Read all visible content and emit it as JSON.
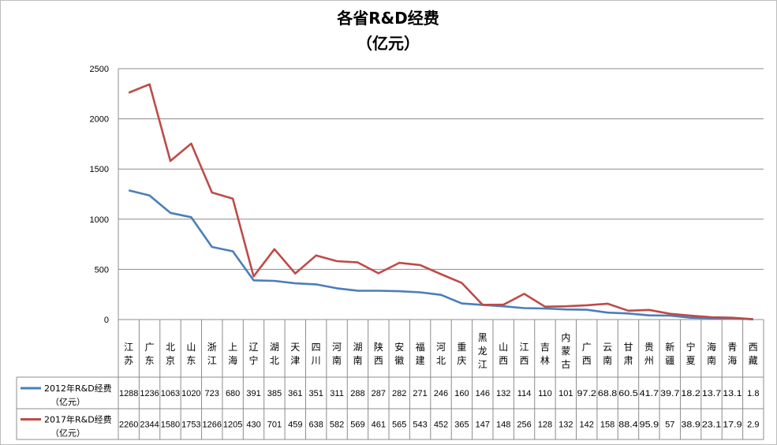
{
  "chart_data": {
    "type": "line",
    "title": "各省R&D经费",
    "subtitle": "（亿元）",
    "ylim": [
      0,
      2500
    ],
    "yticks": [
      "0",
      "500",
      "1000",
      "1500",
      "2000",
      "2500"
    ],
    "grid": true,
    "legend_position": "table-left",
    "categories": [
      [
        "江",
        "苏"
      ],
      [
        "广",
        "东"
      ],
      [
        "北",
        "京"
      ],
      [
        "山",
        "东"
      ],
      [
        "浙",
        "江"
      ],
      [
        "上",
        "海"
      ],
      [
        "辽",
        "宁"
      ],
      [
        "湖",
        "北"
      ],
      [
        "天",
        "津"
      ],
      [
        "四",
        "川"
      ],
      [
        "河",
        "南"
      ],
      [
        "湖",
        "南"
      ],
      [
        "陕",
        "西"
      ],
      [
        "安",
        "徽"
      ],
      [
        "福",
        "建"
      ],
      [
        "河",
        "北"
      ],
      [
        "重",
        "庆"
      ],
      [
        "黑",
        "龙",
        "江"
      ],
      [
        "山",
        "西"
      ],
      [
        "江",
        "西"
      ],
      [
        "吉",
        "林"
      ],
      [
        "内",
        "蒙",
        "古"
      ],
      [
        "广",
        "西"
      ],
      [
        "云",
        "南"
      ],
      [
        "甘",
        "肃"
      ],
      [
        "贵",
        "州"
      ],
      [
        "新",
        "疆"
      ],
      [
        "宁",
        "夏"
      ],
      [
        "海",
        "南"
      ],
      [
        "青",
        "海"
      ],
      [
        "西",
        "藏"
      ]
    ],
    "series": [
      {
        "name_line1": "2012年R&D经费",
        "name_line2": "（亿元）",
        "color": "#4a7ebb",
        "values": [
          1288,
          1236,
          1063,
          1020,
          723,
          680,
          391,
          385,
          361,
          351,
          311,
          288,
          287,
          282,
          271,
          246,
          160,
          146,
          132,
          114,
          110,
          101,
          97.2,
          68.8,
          60.5,
          41.7,
          39.7,
          18.2,
          13.7,
          13.1,
          1.8
        ],
        "labels": [
          "1288",
          "1236",
          "1063",
          "1020",
          "723",
          "680",
          "391",
          "385",
          "361",
          "351",
          "311",
          "288",
          "287",
          "282",
          "271",
          "246",
          "160",
          "146",
          "132",
          "114",
          "110",
          "101",
          "97.2",
          "68.8",
          "60.5",
          "41.7",
          "39.7",
          "18.2",
          "13.7",
          "13.1",
          "1.8"
        ]
      },
      {
        "name_line1": "2017年R&D经费",
        "name_line2": "（亿元）",
        "color": "#be4b48",
        "values": [
          2260,
          2344,
          1580,
          1753,
          1266,
          1205,
          430,
          701,
          459,
          638,
          582,
          569,
          461,
          565,
          543,
          452,
          365,
          147,
          148,
          256,
          128,
          132,
          142,
          158,
          88.4,
          95.9,
          57,
          38.9,
          23.1,
          17.9,
          2.9
        ],
        "labels": [
          "2260",
          "2344",
          "1580",
          "1753",
          "1266",
          "1205",
          "430",
          "701",
          "459",
          "638",
          "582",
          "569",
          "461",
          "565",
          "543",
          "452",
          "365",
          "147",
          "148",
          "256",
          "128",
          "132",
          "142",
          "158",
          "88.4",
          "95.9",
          "57",
          "38.9",
          "23.1",
          "17.9",
          "2.9"
        ]
      }
    ]
  }
}
